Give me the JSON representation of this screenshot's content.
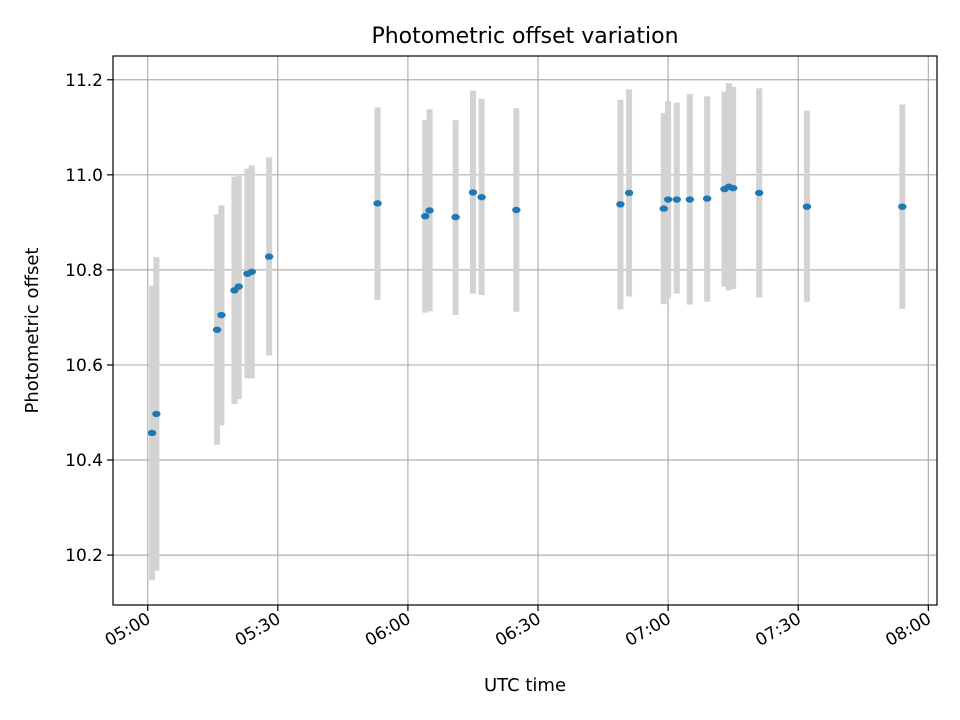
{
  "chart_data": {
    "type": "scatter",
    "title": "Photometric offset variation",
    "xlabel": "UTC time",
    "ylabel": "Photometric offset",
    "xlim": [
      "04:52",
      "08:02"
    ],
    "ylim": [
      10.095,
      11.25
    ],
    "grid": true,
    "xticks": [
      "05:00",
      "05:30",
      "06:00",
      "06:30",
      "07:00",
      "07:30",
      "08:00"
    ],
    "yticks": [
      "10.2",
      "10.4",
      "10.6",
      "10.8",
      "11.0",
      "11.2"
    ],
    "colors": {
      "point": "#1f77b4",
      "errorbar": "#d3d3d3"
    },
    "points": [
      {
        "t": "05:01",
        "y": 10.457,
        "lo": 10.147,
        "hi": 10.767
      },
      {
        "t": "05:02",
        "y": 10.497,
        "lo": 10.167,
        "hi": 10.827
      },
      {
        "t": "05:16",
        "y": 10.674,
        "lo": 10.432,
        "hi": 10.917
      },
      {
        "t": "05:17",
        "y": 10.705,
        "lo": 10.473,
        "hi": 10.936
      },
      {
        "t": "05:20",
        "y": 10.757,
        "lo": 10.518,
        "hi": 10.996
      },
      {
        "t": "05:21",
        "y": 10.765,
        "lo": 10.528,
        "hi": 11.002
      },
      {
        "t": "05:23",
        "y": 10.792,
        "lo": 10.572,
        "hi": 11.013
      },
      {
        "t": "05:24",
        "y": 10.796,
        "lo": 10.572,
        "hi": 11.02
      },
      {
        "t": "05:28",
        "y": 10.828,
        "lo": 10.62,
        "hi": 11.037
      },
      {
        "t": "05:53",
        "y": 10.94,
        "lo": 10.737,
        "hi": 11.142
      },
      {
        "t": "06:04",
        "y": 10.913,
        "lo": 10.71,
        "hi": 11.115
      },
      {
        "t": "06:05",
        "y": 10.925,
        "lo": 10.713,
        "hi": 11.138
      },
      {
        "t": "06:11",
        "y": 10.911,
        "lo": 10.705,
        "hi": 11.115
      },
      {
        "t": "06:15",
        "y": 10.963,
        "lo": 10.75,
        "hi": 11.177
      },
      {
        "t": "06:17",
        "y": 10.953,
        "lo": 10.747,
        "hi": 11.16
      },
      {
        "t": "06:25",
        "y": 10.926,
        "lo": 10.712,
        "hi": 11.14
      },
      {
        "t": "06:49",
        "y": 10.938,
        "lo": 10.717,
        "hi": 11.158
      },
      {
        "t": "06:51",
        "y": 10.962,
        "lo": 10.744,
        "hi": 11.18
      },
      {
        "t": "06:59",
        "y": 10.929,
        "lo": 10.728,
        "hi": 11.13
      },
      {
        "t": "07:00",
        "y": 10.948,
        "lo": 10.74,
        "hi": 11.155
      },
      {
        "t": "07:02",
        "y": 10.948,
        "lo": 10.75,
        "hi": 11.152
      },
      {
        "t": "07:05",
        "y": 10.948,
        "lo": 10.727,
        "hi": 11.17
      },
      {
        "t": "07:09",
        "y": 10.95,
        "lo": 10.733,
        "hi": 11.165
      },
      {
        "t": "07:13",
        "y": 10.97,
        "lo": 10.765,
        "hi": 11.175
      },
      {
        "t": "07:14",
        "y": 10.975,
        "lo": 10.757,
        "hi": 11.193
      },
      {
        "t": "07:15",
        "y": 10.972,
        "lo": 10.76,
        "hi": 11.185
      },
      {
        "t": "07:21",
        "y": 10.962,
        "lo": 10.742,
        "hi": 11.182
      },
      {
        "t": "07:32",
        "y": 10.933,
        "lo": 10.733,
        "hi": 11.135
      },
      {
        "t": "07:54",
        "y": 10.933,
        "lo": 10.718,
        "hi": 11.148
      }
    ]
  }
}
